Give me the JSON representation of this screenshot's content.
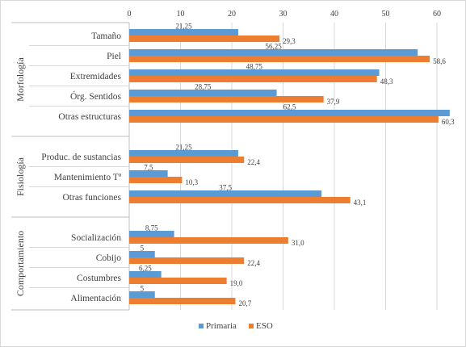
{
  "chart_data": {
    "type": "bar",
    "orientation": "horizontal",
    "xlim": [
      0,
      60
    ],
    "xticks": [
      "0",
      "10",
      "20",
      "30",
      "40",
      "50",
      "60"
    ],
    "grid": true,
    "legend": "bottom-center",
    "groups": [
      {
        "name": "Morfología",
        "categories": [
          "Tamaño",
          "Piel",
          "Extremidades",
          "Órg. Sentidos",
          "Otras estructuras"
        ]
      },
      {
        "name": "Fisiología",
        "categories": [
          "Produc. de sustancias",
          "Mantenimiento Tª",
          "Otras funciones"
        ]
      },
      {
        "name": "Comportamiento",
        "categories": [
          "Socialización",
          "Cobijo",
          "Costumbres",
          "Alimentación"
        ]
      }
    ],
    "series": [
      {
        "name": "Primaria",
        "color": "#5B9BD5",
        "values": [
          21.25,
          56.25,
          48.75,
          28.75,
          62.5,
          21.25,
          7.5,
          37.5,
          8.75,
          5,
          6.25,
          5
        ],
        "labels": [
          "21,25",
          "56,25",
          "48,75",
          "28,75",
          "62,5",
          "21,25",
          "7,5",
          "37,5",
          "8,75",
          "5",
          "6,25",
          "5"
        ]
      },
      {
        "name": "ESO",
        "color": "#ED7D31",
        "values": [
          29.3,
          58.6,
          48.3,
          37.9,
          60.3,
          22.4,
          10.3,
          43.1,
          31.0,
          22.4,
          19.0,
          20.7
        ],
        "labels": [
          "29,3",
          "58,6",
          "48,3",
          "37,9",
          "60,3",
          "22,4",
          "10,3",
          "43,1",
          "31,0",
          "22,4",
          "19,0",
          "20,7"
        ]
      }
    ]
  }
}
